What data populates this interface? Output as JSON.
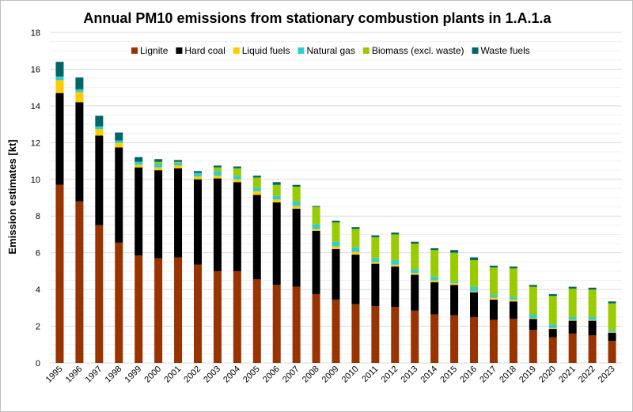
{
  "chart_data": {
    "type": "bar",
    "stacked": true,
    "title": "Annual PM10 emissions from stationary combustion plants in 1.A.1.a",
    "xlabel": "",
    "ylabel": "Emission estimates [kt]",
    "ylim": [
      0,
      18
    ],
    "yticks": [
      0,
      2,
      4,
      6,
      8,
      10,
      12,
      14,
      16,
      18
    ],
    "grid": true,
    "legend_position": "top-right",
    "categories": [
      "1995",
      "1996",
      "1997",
      "1998",
      "1999",
      "2000",
      "2001",
      "2002",
      "2003",
      "2004",
      "2005",
      "2006",
      "2007",
      "2008",
      "2009",
      "2010",
      "2011",
      "2012",
      "2013",
      "2014",
      "2015",
      "2016",
      "2017",
      "2018",
      "2019",
      "2020",
      "2021",
      "2022",
      "2023"
    ],
    "series": [
      {
        "name": "Lignite",
        "color": "#993300",
        "values": [
          9.7,
          8.8,
          7.5,
          6.55,
          5.85,
          5.7,
          5.75,
          5.35,
          5.0,
          5.0,
          4.55,
          4.25,
          4.15,
          3.75,
          3.45,
          3.2,
          3.1,
          3.05,
          2.85,
          2.65,
          2.6,
          2.5,
          2.35,
          2.4,
          1.8,
          1.4,
          1.6,
          1.5,
          1.2
        ]
      },
      {
        "name": "Hard coal",
        "color": "#000000",
        "values": [
          5.0,
          5.4,
          4.88,
          5.19,
          4.8,
          4.8,
          4.85,
          4.65,
          5.05,
          4.85,
          4.6,
          4.5,
          4.25,
          3.45,
          2.75,
          2.7,
          2.3,
          2.2,
          1.95,
          1.75,
          1.65,
          1.35,
          1.1,
          0.95,
          0.6,
          0.45,
          0.7,
          0.8,
          0.45
        ]
      },
      {
        "name": "Liquid fuels",
        "color": "#FFCC00",
        "values": [
          0.7,
          0.55,
          0.35,
          0.24,
          0.14,
          0.15,
          0.15,
          0.15,
          0.15,
          0.15,
          0.2,
          0.15,
          0.15,
          0.1,
          0.15,
          0.15,
          0.1,
          0.1,
          0.1,
          0.1,
          0.1,
          0.05,
          0.1,
          0.1,
          0.05,
          0.05,
          0.05,
          0.05,
          0.05
        ]
      },
      {
        "name": "Natural gas",
        "color": "#33CCCC",
        "values": [
          0.2,
          0.15,
          0.15,
          0.14,
          0.17,
          0.2,
          0.15,
          0.2,
          0.25,
          0.2,
          0.2,
          0.2,
          0.25,
          0.25,
          0.25,
          0.25,
          0.2,
          0.25,
          0.2,
          0.2,
          0.1,
          0.25,
          0.15,
          0.15,
          0.2,
          0.2,
          0.15,
          0.15,
          0.1
        ]
      },
      {
        "name": "Biomass (excl. waste)",
        "color": "#99CC00",
        "values": [
          0,
          0,
          0,
          0,
          0,
          0.1,
          0.05,
          0,
          0.2,
          0.4,
          0.55,
          0.6,
          0.8,
          0.95,
          1.05,
          1.0,
          1.15,
          1.4,
          1.4,
          1.45,
          1.55,
          1.45,
          1.5,
          1.55,
          1.5,
          1.55,
          1.55,
          1.5,
          1.45
        ]
      },
      {
        "name": "Waste fuels",
        "color": "#006666",
        "values": [
          0.8,
          0.65,
          0.58,
          0.43,
          0.25,
          0.15,
          0.1,
          0.1,
          0.1,
          0.1,
          0.1,
          0.15,
          0.1,
          0.05,
          0.1,
          0.1,
          0.1,
          0.1,
          0.1,
          0.1,
          0.15,
          0.15,
          0.1,
          0.1,
          0.1,
          0.1,
          0.1,
          0.1,
          0.1
        ]
      }
    ]
  }
}
